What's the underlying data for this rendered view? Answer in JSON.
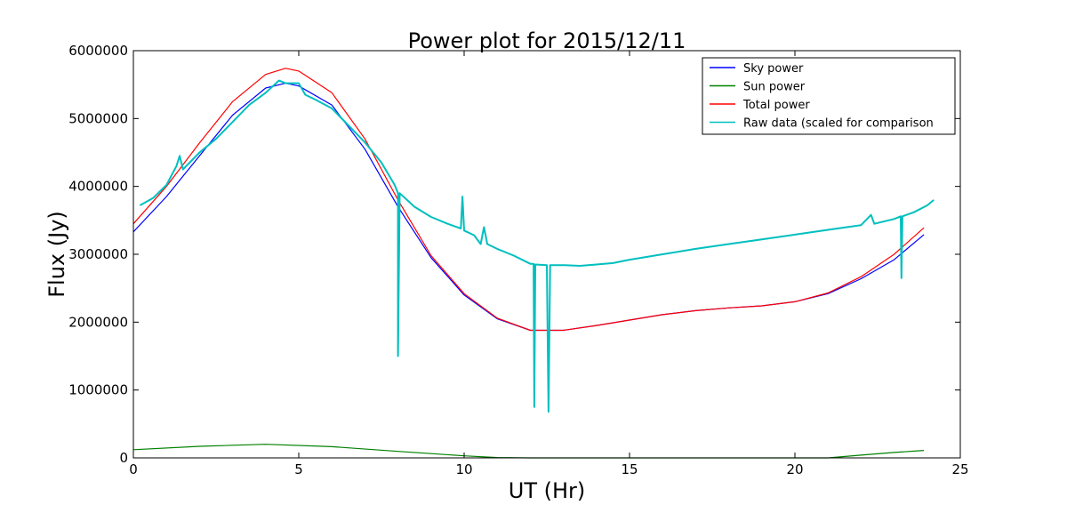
{
  "chart_data": {
    "type": "line",
    "title": "Power plot for 2015/12/11",
    "xlabel": "UT (Hr)",
    "ylabel": "Flux (Jy)",
    "xlim": [
      0,
      25
    ],
    "ylim": [
      0,
      6000000
    ],
    "xticks": [
      0,
      5,
      10,
      15,
      20,
      25
    ],
    "xtick_labels": [
      "0",
      "5",
      "10",
      "15",
      "20",
      "25"
    ],
    "yticks": [
      0,
      1000000,
      2000000,
      3000000,
      4000000,
      5000000,
      6000000
    ],
    "ytick_labels": [
      "0",
      "1000000",
      "2000000",
      "3000000",
      "4000000",
      "5000000",
      "6000000"
    ],
    "grid": false,
    "legend_position": "top-right",
    "series": [
      {
        "name": "Sky power",
        "color": "#0000ff",
        "points": [
          [
            0,
            3330000
          ],
          [
            1,
            3850000
          ],
          [
            2,
            4450000
          ],
          [
            3,
            5050000
          ],
          [
            4,
            5450000
          ],
          [
            4.6,
            5520000
          ],
          [
            5,
            5480000
          ],
          [
            6,
            5200000
          ],
          [
            7,
            4550000
          ],
          [
            8,
            3700000
          ],
          [
            9,
            2950000
          ],
          [
            10,
            2400000
          ],
          [
            11,
            2050000
          ],
          [
            12,
            1880000
          ],
          [
            13,
            1880000
          ],
          [
            14,
            1950000
          ],
          [
            15,
            2030000
          ],
          [
            16,
            2110000
          ],
          [
            17,
            2170000
          ],
          [
            18,
            2210000
          ],
          [
            19,
            2240000
          ],
          [
            20,
            2300000
          ],
          [
            21,
            2420000
          ],
          [
            22,
            2640000
          ],
          [
            23,
            2920000
          ],
          [
            23.9,
            3290000
          ]
        ]
      },
      {
        "name": "Sun power",
        "color": "#008000",
        "points": [
          [
            0,
            120000
          ],
          [
            2,
            170000
          ],
          [
            4,
            200000
          ],
          [
            6,
            165000
          ],
          [
            8,
            95000
          ],
          [
            10,
            30000
          ],
          [
            11,
            5000
          ],
          [
            12,
            0
          ],
          [
            21,
            0
          ],
          [
            22,
            40000
          ],
          [
            23,
            80000
          ],
          [
            23.9,
            110000
          ]
        ]
      },
      {
        "name": "Total power",
        "color": "#ff0000",
        "points": [
          [
            0,
            3450000
          ],
          [
            1,
            4000000
          ],
          [
            2,
            4640000
          ],
          [
            3,
            5250000
          ],
          [
            4,
            5650000
          ],
          [
            4.6,
            5740000
          ],
          [
            5,
            5700000
          ],
          [
            6,
            5380000
          ],
          [
            7,
            4700000
          ],
          [
            8,
            3800000
          ],
          [
            9,
            2980000
          ],
          [
            10,
            2420000
          ],
          [
            11,
            2060000
          ],
          [
            12,
            1880000
          ],
          [
            13,
            1880000
          ],
          [
            14,
            1950000
          ],
          [
            15,
            2030000
          ],
          [
            16,
            2110000
          ],
          [
            17,
            2170000
          ],
          [
            18,
            2210000
          ],
          [
            19,
            2240000
          ],
          [
            20,
            2300000
          ],
          [
            21,
            2430000
          ],
          [
            22,
            2670000
          ],
          [
            23,
            3000000
          ],
          [
            23.9,
            3390000
          ]
        ]
      },
      {
        "name": "Raw data (scaled for comparison",
        "color": "#00bfbf",
        "points": [
          [
            0.2,
            3720000
          ],
          [
            0.6,
            3830000
          ],
          [
            1,
            4020000
          ],
          [
            1.3,
            4300000
          ],
          [
            1.4,
            4450000
          ],
          [
            1.5,
            4250000
          ],
          [
            2,
            4500000
          ],
          [
            2.5,
            4700000
          ],
          [
            3,
            4950000
          ],
          [
            3.5,
            5200000
          ],
          [
            4,
            5380000
          ],
          [
            4.4,
            5560000
          ],
          [
            4.6,
            5520000
          ],
          [
            5,
            5520000
          ],
          [
            5.2,
            5350000
          ],
          [
            5.5,
            5280000
          ],
          [
            6,
            5150000
          ],
          [
            6.5,
            4900000
          ],
          [
            7,
            4650000
          ],
          [
            7.5,
            4350000
          ],
          [
            7.9,
            4020000
          ],
          [
            8.0,
            3900000
          ],
          [
            8.0,
            1500000
          ],
          [
            8.05,
            3900000
          ],
          [
            8.5,
            3700000
          ],
          [
            9,
            3550000
          ],
          [
            9.5,
            3450000
          ],
          [
            9.9,
            3380000
          ],
          [
            9.95,
            3850000
          ],
          [
            10.0,
            3350000
          ],
          [
            10.3,
            3280000
          ],
          [
            10.5,
            3150000
          ],
          [
            10.6,
            3400000
          ],
          [
            10.7,
            3150000
          ],
          [
            11,
            3080000
          ],
          [
            11.5,
            2980000
          ],
          [
            12,
            2860000
          ],
          [
            12.1,
            2860000
          ],
          [
            12.12,
            750000
          ],
          [
            12.15,
            2850000
          ],
          [
            12.5,
            2840000
          ],
          [
            12.55,
            680000
          ],
          [
            12.6,
            2840000
          ],
          [
            13,
            2840000
          ],
          [
            13.5,
            2830000
          ],
          [
            14,
            2850000
          ],
          [
            14.5,
            2870000
          ],
          [
            15,
            2920000
          ],
          [
            16,
            3000000
          ],
          [
            17,
            3080000
          ],
          [
            18,
            3150000
          ],
          [
            19,
            3220000
          ],
          [
            20,
            3290000
          ],
          [
            21,
            3360000
          ],
          [
            22,
            3430000
          ],
          [
            22.3,
            3580000
          ],
          [
            22.4,
            3450000
          ],
          [
            23,
            3520000
          ],
          [
            23.2,
            3560000
          ],
          [
            23.22,
            2650000
          ],
          [
            23.25,
            3560000
          ],
          [
            23.6,
            3620000
          ],
          [
            24,
            3720000
          ],
          [
            24.2,
            3800000
          ]
        ]
      }
    ]
  }
}
